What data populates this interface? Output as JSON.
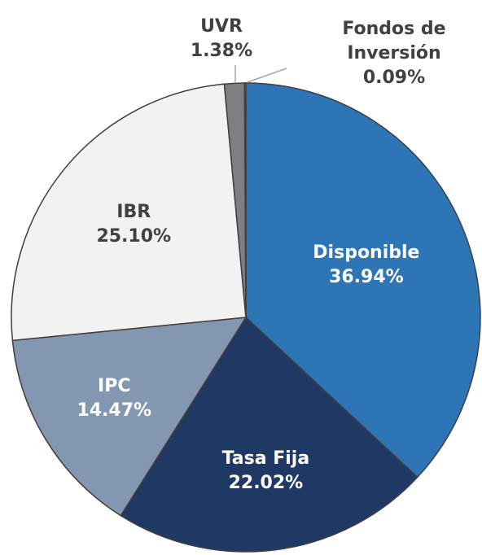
{
  "chart_data": {
    "type": "pie",
    "categories": [
      "Disponible",
      "Tasa Fija",
      "IPC",
      "IBR",
      "UVR",
      "Fondos de Inversión"
    ],
    "values": [
      36.94,
      22.02,
      14.47,
      25.1,
      1.38,
      0.09
    ],
    "value_labels": [
      "36.94%",
      "22.02%",
      "14.47%",
      "25.10%",
      "1.38%",
      "0.09%"
    ],
    "colors": [
      "#2e75b6",
      "#203864",
      "#8497b0",
      "#f2f2f2",
      "#7f7f7f",
      "#d9d9d9"
    ]
  }
}
